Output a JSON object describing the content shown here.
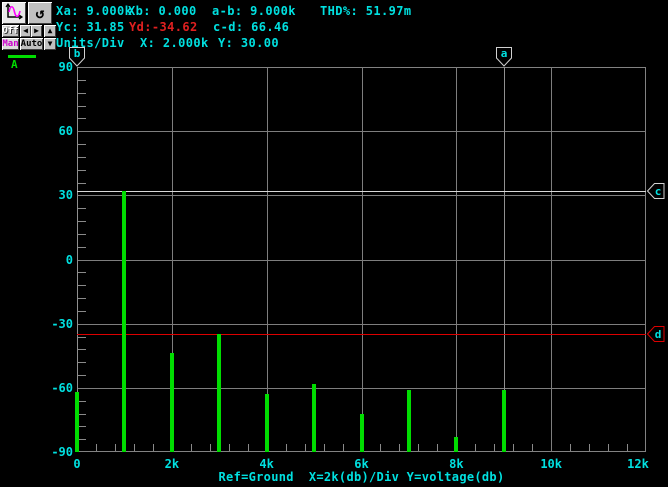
{
  "colors": {
    "background": "#000000",
    "text_cyan": "#00e0e0",
    "text_red": "#e02020",
    "grid_gray": "#7e7e7e",
    "trace_green": "#00dd00",
    "button_face": "#c0c0c0"
  },
  "toolbar": {
    "off_label": "Off",
    "man_label": "Man",
    "auto_label": "Auto",
    "icons": {
      "rotate": "↺",
      "left_arrow": "◀",
      "right_arrow": "▶",
      "up_arrow": "▲",
      "down_arrow": "▼"
    }
  },
  "readouts": {
    "xa": "Xa: 9.000k",
    "xb": "Xb: 0.000",
    "a_minus_b": "a-b: 9.000k",
    "thd": "THD%: 51.97m",
    "yc": "Yc: 31.85",
    "yd": "Yd:-34.62",
    "c_minus_d": "c-d: 66.46",
    "units_per_div": "Units/Div",
    "x_per_div": "X: 2.000k",
    "y_per_div": "Y: 30.00"
  },
  "legend": {
    "trace_label": "A"
  },
  "chart_data": {
    "type": "bar",
    "title": "Ref=Ground  X=2k(db)/Div Y=voltage(db)",
    "xlabel": "X=2k(db)/Div",
    "ylabel": "Y=voltage(db)",
    "xlim": [
      0,
      12000
    ],
    "ylim": [
      -90,
      90
    ],
    "x_major_step": 2000,
    "x_minor_step": 400,
    "y_major_step": 30,
    "y_minor_step": 6,
    "grid": true,
    "x_tick_labels": [
      "0",
      "2k",
      "4k",
      "6k",
      "8k",
      "10k",
      "12k"
    ],
    "y_tick_labels": [
      "90",
      "60",
      "30",
      "0",
      "-30",
      "-60",
      "-90"
    ],
    "series": [
      {
        "name": "A",
        "color": "#00dd00",
        "x": [
          0,
          1000,
          2000,
          3000,
          4000,
          5000,
          6000,
          7000,
          8000,
          9000
        ],
        "values": [
          -62,
          31.85,
          -43.6,
          -34.62,
          -63,
          -58.3,
          -72,
          -61,
          -83,
          -61
        ]
      }
    ],
    "cursors": {
      "vertical": [
        {
          "name": "b",
          "x": 0,
          "line_color": "#909090",
          "flag_color": "#d0d0d0"
        },
        {
          "name": "a",
          "x": 9000,
          "line_color": "#909090",
          "flag_color": "#d0d0d0"
        }
      ],
      "horizontal": [
        {
          "name": "c",
          "y": 31.85,
          "line_color": "#d8d8d8",
          "flag_color": "#d0d0d0"
        },
        {
          "name": "d",
          "y": -34.62,
          "line_color": "#dd0000",
          "flag_color": "#dd0000"
        }
      ]
    }
  }
}
